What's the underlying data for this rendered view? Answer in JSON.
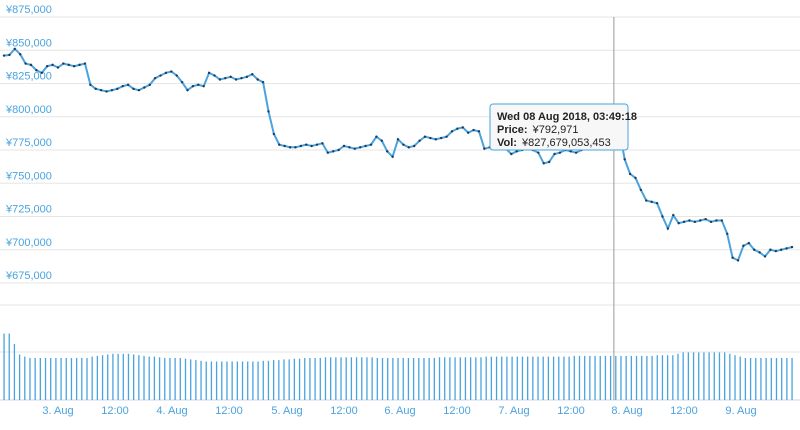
{
  "chart_data": [
    {
      "type": "line",
      "title": "",
      "xlabel": "",
      "ylabel": "",
      "ylim": [
        675000,
        875000
      ],
      "y_ticks": [
        "¥875,000",
        "¥850,000",
        "¥825,000",
        "¥800,000",
        "¥775,000",
        "¥750,000",
        "¥725,000",
        "¥700,000",
        "¥675,000"
      ],
      "y_tick_values": [
        875000,
        850000,
        825000,
        800000,
        775000,
        750000,
        725000,
        700000,
        675000
      ],
      "x_tick_labels": [
        "3. Aug",
        "12:00",
        "4. Aug",
        "12:00",
        "5. Aug",
        "12:00",
        "6. Aug",
        "12:00",
        "7. Aug",
        "12:00",
        "8. Aug",
        "12:00",
        "9. Aug"
      ],
      "color": "#4aa3df",
      "series": [
        {
          "values": [
            846000,
            846500,
            851000,
            847000,
            840000,
            839000,
            835000,
            833000,
            838000,
            839000,
            837000,
            840000,
            839000,
            838000,
            839000,
            840000,
            824000,
            821000,
            820000,
            819000,
            820000,
            821000,
            823000,
            824000,
            821000,
            820000,
            822000,
            824000,
            829000,
            831000,
            833000,
            834000,
            831000,
            826000,
            820000,
            823000,
            824000,
            823000,
            833000,
            831000,
            828000,
            829000,
            830000,
            828000,
            829000,
            830000,
            832000,
            828000,
            826000,
            804000,
            787000,
            779000,
            778000,
            777000,
            777000,
            778000,
            779000,
            778000,
            779000,
            780000,
            773000,
            774000,
            775000,
            778000,
            777000,
            776000,
            777000,
            778000,
            779000,
            785000,
            782000,
            774000,
            770000,
            783000,
            779000,
            777000,
            778000,
            782000,
            785000,
            784000,
            783000,
            784000,
            785000,
            789000,
            791000,
            792000,
            788000,
            790000,
            789000,
            776000,
            777000,
            779000,
            778000,
            776000,
            772000,
            774000,
            775000,
            776000,
            775000,
            773000,
            765000,
            766000,
            772000,
            773000,
            775000,
            774000,
            773000,
            775000,
            782000,
            786000,
            790000,
            792000,
            789000,
            792971,
            790000,
            768000,
            757000,
            754000,
            745000,
            737000,
            736000,
            735000,
            725000,
            716000,
            726000,
            720000,
            721000,
            722000,
            721000,
            722000,
            723000,
            721000,
            722000,
            722000,
            712000,
            694000,
            692000,
            703000,
            705000,
            700000,
            698000,
            695000,
            700000,
            699000,
            700000,
            701000,
            702000
          ]
        }
      ]
    },
    {
      "type": "bar",
      "title": "",
      "series_name": "",
      "values": [
        95,
        95,
        80,
        65,
        62,
        60,
        60,
        60,
        60,
        60,
        60,
        60,
        60,
        60,
        60,
        60,
        60,
        62,
        63,
        64,
        65,
        66,
        66,
        66,
        66,
        65,
        64,
        63,
        62,
        62,
        61,
        60,
        60,
        60,
        60,
        59,
        58,
        57,
        56,
        55,
        55,
        55,
        55,
        55,
        55,
        55,
        55,
        55,
        55,
        55,
        56,
        56,
        57,
        57,
        58,
        58,
        59,
        59,
        60,
        60,
        60,
        60,
        61,
        61,
        61,
        61,
        61,
        61,
        61,
        61,
        61,
        61,
        60,
        60,
        60,
        60,
        60,
        60,
        60,
        60,
        60,
        60,
        60,
        60,
        61,
        61,
        61,
        61,
        61,
        61,
        61,
        61,
        61,
        62,
        62,
        62,
        62,
        62,
        62,
        62,
        62,
        62,
        62,
        62,
        62,
        62,
        62,
        62,
        62,
        62,
        63,
        63,
        63,
        63,
        63,
        63,
        63,
        63,
        63,
        63,
        63,
        63,
        63,
        63,
        63,
        63,
        64,
        64,
        64,
        64,
        66,
        68,
        68,
        68,
        68,
        68,
        68,
        68,
        68,
        68,
        66,
        64,
        62,
        60,
        60,
        60,
        60,
        60,
        60,
        60,
        60,
        60,
        60
      ],
      "color": "#4aa3df"
    }
  ],
  "tooltip": {
    "date": "Wed 08 Aug 2018, 03:49:18",
    "price_label": "Price:",
    "price_value": "¥792,971",
    "vol_label": "Vol:",
    "vol_value": "¥827,679,053,453"
  },
  "crosshair_index": 113
}
